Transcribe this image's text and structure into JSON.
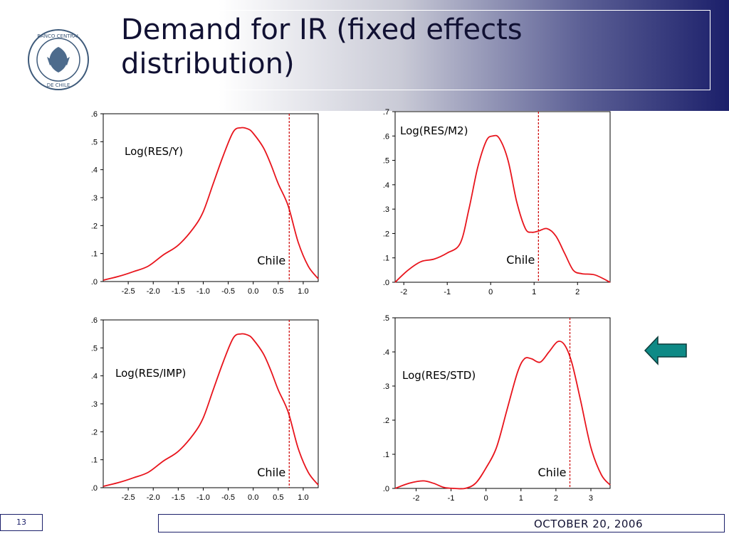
{
  "slide": {
    "title": "Demand for IR (fixed effects\ndistribution)",
    "page_number": "13",
    "date": "OCTOBER 20, 2006",
    "logo_text": [
      "BANCO CENTRAL",
      "DE CHILE"
    ]
  },
  "colors": {
    "curve": "#e8141c",
    "vline": "#cc0000",
    "header_dark": "#1b1f6a",
    "arrow_fill": "#0e8a86"
  },
  "icons": {
    "arrow": "left-arrow-icon",
    "logo": "central-bank-seal-icon"
  },
  "chart_data": [
    {
      "type": "line",
      "label": "Log(RES/Y)",
      "marker_label": "Chile",
      "marker_x": 0.72,
      "xlim": [
        -3.0,
        1.3
      ],
      "ylim": [
        0.0,
        0.6
      ],
      "xticks": [
        -2.5,
        -2.0,
        -1.5,
        -1.0,
        -0.5,
        0.0,
        0.5,
        1.0
      ],
      "xtick_labels": [
        "-2.5",
        "-2.0",
        "-1.5",
        "-1.0",
        "-0.5",
        "0.0",
        "0.5",
        "1.0"
      ],
      "yticks": [
        0,
        0.1,
        0.2,
        0.3,
        0.4,
        0.5,
        0.6
      ],
      "ytick_labels": [
        ".0",
        ".1",
        ".2",
        ".3",
        ".4",
        ".5",
        ".6"
      ],
      "x": [
        -3.0,
        -2.7,
        -2.4,
        -2.1,
        -1.8,
        -1.5,
        -1.2,
        -1.0,
        -0.8,
        -0.6,
        -0.4,
        -0.25,
        -0.1,
        0.0,
        0.2,
        0.35,
        0.5,
        0.7,
        0.9,
        1.1,
        1.3
      ],
      "y": [
        0.005,
        0.018,
        0.035,
        0.055,
        0.095,
        0.13,
        0.19,
        0.25,
        0.35,
        0.45,
        0.535,
        0.55,
        0.545,
        0.53,
        0.48,
        0.42,
        0.35,
        0.27,
        0.14,
        0.055,
        0.01
      ]
    },
    {
      "type": "line",
      "label": "Log(RES/M2)",
      "marker_label": "Chile",
      "marker_x": 1.1,
      "xlim": [
        -2.2,
        2.75
      ],
      "ylim": [
        0.0,
        0.7
      ],
      "xticks": [
        -2,
        -1,
        0,
        1,
        2
      ],
      "xtick_labels": [
        "-2",
        "-1",
        "0",
        "1",
        "2"
      ],
      "yticks": [
        0,
        0.1,
        0.2,
        0.3,
        0.4,
        0.5,
        0.6,
        0.7
      ],
      "ytick_labels": [
        ".0",
        ".1",
        ".2",
        ".3",
        ".4",
        ".5",
        ".6",
        ".7"
      ],
      "x": [
        -2.2,
        -1.9,
        -1.6,
        -1.3,
        -1.0,
        -0.7,
        -0.5,
        -0.3,
        -0.1,
        0.05,
        0.2,
        0.4,
        0.6,
        0.8,
        0.95,
        1.1,
        1.3,
        1.5,
        1.7,
        1.9,
        2.1,
        2.4,
        2.75
      ],
      "y": [
        0.0,
        0.05,
        0.085,
        0.095,
        0.12,
        0.16,
        0.3,
        0.47,
        0.58,
        0.6,
        0.59,
        0.5,
        0.33,
        0.22,
        0.205,
        0.21,
        0.22,
        0.19,
        0.12,
        0.05,
        0.035,
        0.03,
        0.0
      ]
    },
    {
      "type": "line",
      "label": "Log(RES/IMP)",
      "marker_label": "Chile",
      "marker_x": 0.72,
      "xlim": [
        -3.0,
        1.3
      ],
      "ylim": [
        0.0,
        0.6
      ],
      "xticks": [
        -2.5,
        -2.0,
        -1.5,
        -1.0,
        -0.5,
        0.0,
        0.5,
        1.0
      ],
      "xtick_labels": [
        "-2.5",
        "-2.0",
        "-1.5",
        "-1.0",
        "-0.5",
        "0.0",
        "0.5",
        "1.0"
      ],
      "yticks": [
        0,
        0.1,
        0.2,
        0.3,
        0.4,
        0.5,
        0.6
      ],
      "ytick_labels": [
        ".0",
        ".1",
        ".2",
        ".3",
        ".4",
        ".5",
        ".6"
      ],
      "x": [
        -3.0,
        -2.7,
        -2.4,
        -2.1,
        -1.8,
        -1.5,
        -1.2,
        -1.0,
        -0.8,
        -0.6,
        -0.4,
        -0.25,
        -0.1,
        0.0,
        0.2,
        0.35,
        0.5,
        0.7,
        0.9,
        1.1,
        1.3
      ],
      "y": [
        0.005,
        0.018,
        0.035,
        0.055,
        0.095,
        0.13,
        0.19,
        0.25,
        0.35,
        0.45,
        0.535,
        0.55,
        0.545,
        0.53,
        0.48,
        0.42,
        0.35,
        0.27,
        0.14,
        0.055,
        0.01
      ]
    },
    {
      "type": "line",
      "label": "Log(RES/STD)",
      "marker_label": "Chile",
      "marker_x": 2.4,
      "xlim": [
        -2.6,
        3.55
      ],
      "ylim": [
        0.0,
        0.5
      ],
      "xticks": [
        -2,
        -1,
        0,
        1,
        2,
        3
      ],
      "xtick_labels": [
        "-2",
        "-1",
        "0",
        "1",
        "2",
        "3"
      ],
      "yticks": [
        0,
        0.1,
        0.2,
        0.3,
        0.4,
        0.5
      ],
      "ytick_labels": [
        ".0",
        ".1",
        ".2",
        ".3",
        ".4",
        ".5"
      ],
      "x": [
        -2.6,
        -2.2,
        -1.8,
        -1.5,
        -1.2,
        -0.9,
        -0.6,
        -0.3,
        0.0,
        0.3,
        0.6,
        0.9,
        1.1,
        1.3,
        1.55,
        1.8,
        2.05,
        2.25,
        2.45,
        2.7,
        3.0,
        3.3,
        3.55
      ],
      "y": [
        0.0,
        0.015,
        0.022,
        0.015,
        0.003,
        0.0,
        0.0,
        0.015,
        0.06,
        0.12,
        0.23,
        0.34,
        0.38,
        0.38,
        0.37,
        0.4,
        0.43,
        0.42,
        0.37,
        0.26,
        0.12,
        0.04,
        0.01
      ]
    }
  ]
}
